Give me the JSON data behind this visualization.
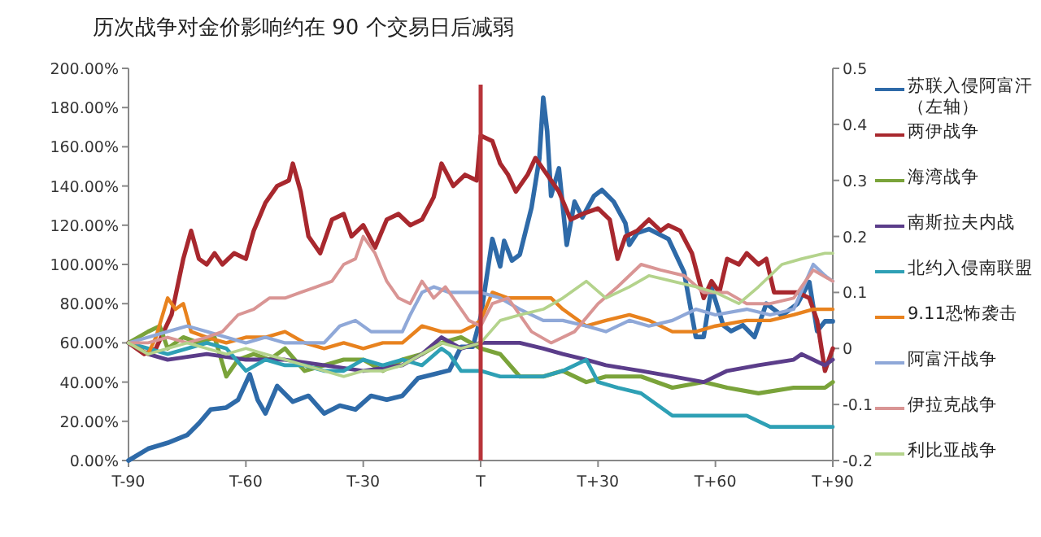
{
  "chart_data": {
    "type": "line",
    "title": "历次战争对金价影响约在 90 个交易日后减弱",
    "legend": "right",
    "categories": [
      "T-90",
      null,
      null,
      null,
      null,
      null,
      null,
      null,
      null,
      null,
      null,
      null,
      null,
      null,
      null,
      null,
      null,
      null,
      null,
      null,
      null,
      null,
      null,
      null,
      null,
      null,
      null,
      null,
      null,
      null,
      "T-60",
      null,
      null,
      null,
      null,
      null,
      null,
      null,
      null,
      null,
      null,
      null,
      null,
      null,
      null,
      null,
      null,
      null,
      null,
      null,
      null,
      null,
      null,
      null,
      null,
      null,
      null,
      null,
      null,
      null,
      "T-30",
      null,
      null,
      null,
      null,
      null,
      null,
      null,
      null,
      null,
      null,
      null,
      null,
      null,
      null,
      null,
      null,
      null,
      null,
      null,
      null,
      null,
      null,
      null,
      null,
      null,
      null,
      null,
      null,
      null,
      "T",
      null,
      null,
      null,
      null,
      null,
      null,
      null,
      null,
      null,
      null,
      null,
      null,
      null,
      null,
      null,
      null,
      null,
      null,
      null,
      null,
      null,
      null,
      null,
      null,
      null,
      null,
      null,
      null,
      null,
      "T+30",
      null,
      null,
      null,
      null,
      null,
      null,
      null,
      null,
      null,
      null,
      null,
      null,
      null,
      null,
      null,
      null,
      null,
      null,
      null,
      null,
      null,
      null,
      null,
      null,
      null,
      null,
      null,
      null,
      null,
      "T+60",
      null,
      null,
      null,
      null,
      null,
      null,
      null,
      null,
      null,
      null,
      null,
      null,
      null,
      null,
      null,
      null,
      null,
      null,
      null,
      null,
      null,
      null,
      null,
      null,
      null,
      null,
      null,
      null,
      null,
      "T+90"
    ],
    "ylim": [
      0,
      200
    ],
    "yticks": [
      {
        "value": 0,
        "label": "0.00%"
      },
      {
        "value": 20,
        "label": "20.00%"
      },
      {
        "value": 40,
        "label": "40.00%"
      },
      {
        "value": 60,
        "label": "60.00%"
      },
      {
        "value": 80,
        "label": "80.00%"
      },
      {
        "value": 100,
        "label": "100.00%"
      },
      {
        "value": 120,
        "label": "120.00%"
      },
      {
        "value": 140,
        "label": "140.00%"
      },
      {
        "value": 160,
        "label": "160.00%"
      },
      {
        "value": 180,
        "label": "180.00%"
      },
      {
        "value": 200,
        "label": "200.00%"
      }
    ],
    "y2lim": [
      -0.2,
      0.5
    ],
    "y2ticks": [
      -0.2,
      -0.1,
      0,
      0.1,
      0.2,
      0.3,
      0.4,
      0.5
    ],
    "ref_lines": [
      {
        "axis": "x",
        "value": "T",
        "color": "#b8343a"
      }
    ],
    "series": [
      {
        "name": "苏联入侵阿富汗（左轴）",
        "color": "#2e6aa8",
        "values": [
          0,
          null,
          null,
          null,
          null,
          6,
          null,
          null,
          null,
          null,
          9,
          null,
          null,
          null,
          null,
          13,
          null,
          null,
          19,
          null,
          null,
          26,
          null,
          null,
          null,
          27,
          null,
          null,
          31,
          null,
          null,
          44,
          null,
          31,
          null,
          24,
          null,
          null,
          38,
          null,
          null,
          null,
          30,
          null,
          null,
          null,
          33,
          null,
          null,
          null,
          24,
          null,
          null,
          null,
          28,
          null,
          null,
          null,
          26,
          null,
          null,
          null,
          33,
          null,
          null,
          null,
          31,
          null,
          null,
          null,
          33,
          null,
          null,
          null,
          42,
          null,
          null,
          null,
          44,
          null,
          null,
          null,
          46,
          null,
          null,
          58,
          null,
          null,
          58,
          null,
          73,
          null,
          null,
          113,
          null,
          99,
          112,
          null,
          102,
          null,
          105,
          null,
          null,
          129,
          null,
          154,
          185,
          168,
          135,
          null,
          149,
          null,
          110,
          null,
          132,
          null,
          124,
          null,
          null,
          135,
          null,
          138,
          null,
          null,
          132,
          null,
          null,
          121,
          110,
          null,
          116,
          null,
          null,
          118,
          null,
          null,
          null,
          null,
          113,
          null,
          null,
          null,
          96,
          null,
          null,
          63,
          null,
          63,
          null,
          88,
          null,
          null,
          69,
          null,
          66,
          null,
          null,
          69,
          null,
          null,
          63,
          null,
          null,
          80,
          null,
          null,
          null,
          74,
          null,
          null,
          null,
          80,
          null,
          null,
          91,
          null,
          66,
          null,
          71,
          null,
          71
        ]
      },
      {
        "name": "两伊战争",
        "color": "#a8282e",
        "axis": "y2",
        "values": [
          0.01,
          null,
          null,
          null,
          -0.01,
          null,
          null,
          0,
          null,
          null,
          null,
          0.06,
          null,
          null,
          0.16,
          null,
          0.21,
          null,
          0.16,
          null,
          0.15,
          null,
          0.17,
          null,
          0.15,
          null,
          null,
          0.17,
          null,
          null,
          0.16,
          null,
          0.21,
          null,
          null,
          0.26,
          null,
          null,
          0.29,
          null,
          null,
          0.3,
          0.33,
          null,
          0.28,
          null,
          0.2,
          null,
          null,
          0.17,
          null,
          null,
          0.23,
          null,
          null,
          0.24,
          null,
          0.2,
          null,
          null,
          0.22,
          null,
          null,
          0.18,
          null,
          null,
          0.23,
          null,
          null,
          0.24,
          null,
          null,
          0.22,
          null,
          null,
          0.23,
          null,
          null,
          0.27,
          null,
          0.33,
          null,
          null,
          0.29,
          null,
          null,
          0.31,
          null,
          null,
          0.3,
          0.38,
          null,
          null,
          0.37,
          null,
          0.33,
          null,
          0.31,
          null,
          0.28,
          null,
          null,
          0.31,
          null,
          0.34,
          null,
          null,
          0.31,
          null,
          null,
          0.28,
          null,
          null,
          0.23,
          null,
          null,
          0.24,
          null,
          null,
          null,
          0.25,
          null,
          null,
          0.23,
          null,
          0.16,
          null,
          0.2,
          null,
          null,
          0.21,
          null,
          null,
          0.23,
          null,
          null,
          0.21,
          null,
          0.22,
          null,
          null,
          0.21,
          null,
          null,
          0.17,
          null,
          null,
          0.09,
          null,
          0.12,
          null,
          0.1,
          null,
          0.16,
          null,
          null,
          0.15,
          null,
          0.17,
          null,
          null,
          0.15,
          null,
          0.16,
          null,
          0.1,
          null,
          null,
          0.1,
          null,
          null,
          0.1,
          null,
          null,
          0.09,
          null,
          0.05,
          null,
          -0.04,
          null,
          0
        ]
      },
      {
        "name": "海湾战争",
        "color": "#7aa33a",
        "axis": "y2",
        "values": [
          0.01,
          null,
          null,
          null,
          null,
          0.03,
          null,
          null,
          0.04,
          null,
          0,
          null,
          null,
          null,
          0.02,
          null,
          null,
          null,
          0.01,
          null,
          null,
          null,
          0.02,
          null,
          null,
          -0.05,
          null,
          null,
          -0.02,
          null,
          null,
          null,
          -0.01,
          null,
          null,
          null,
          -0.02,
          null,
          null,
          null,
          0,
          null,
          null,
          null,
          null,
          -0.04,
          null,
          null,
          null,
          null,
          -0.03,
          null,
          null,
          null,
          null,
          -0.02,
          null,
          null,
          null,
          null,
          -0.02,
          null,
          null,
          null,
          null,
          -0.04,
          null,
          null,
          null,
          null,
          -0.02,
          null,
          null,
          null,
          null,
          -0.01,
          null,
          null,
          null,
          null,
          0.01,
          null,
          null,
          null,
          null,
          0.02,
          null,
          null,
          null,
          null,
          0,
          null,
          null,
          null,
          null,
          -0.01,
          null,
          null,
          null,
          null,
          -0.05,
          null,
          null,
          null,
          null,
          null,
          -0.05,
          null,
          null,
          null,
          null,
          -0.04,
          null,
          null,
          null,
          null,
          null,
          -0.06,
          null,
          null,
          null,
          null,
          -0.05,
          null,
          null,
          null,
          null,
          null,
          null,
          null,
          null,
          -0.05,
          null,
          null,
          null,
          null,
          null,
          null,
          null,
          -0.07,
          null,
          null,
          null,
          null,
          null,
          null,
          null,
          -0.06,
          null,
          null,
          null,
          null,
          null,
          -0.07,
          null,
          null,
          null,
          null,
          null,
          null,
          null,
          -0.08,
          null,
          null,
          null,
          null,
          null,
          null,
          null,
          null,
          -0.07,
          null,
          null,
          null,
          null,
          null,
          null,
          null,
          -0.07,
          null,
          -0.06
        ]
      },
      {
        "name": "南斯拉夫内战",
        "color": "#5b3d8a",
        "axis": "y2",
        "values": [
          0.01,
          null,
          null,
          null,
          null,
          -0.01,
          null,
          null,
          null,
          null,
          -0.02,
          null,
          null,
          null,
          null,
          null,
          null,
          null,
          null,
          null,
          -0.01,
          null,
          null,
          null,
          null,
          null,
          null,
          null,
          null,
          null,
          -0.02,
          null,
          null,
          null,
          null,
          null,
          null,
          null,
          null,
          null,
          -0.02,
          null,
          null,
          null,
          null,
          null,
          null,
          null,
          null,
          null,
          -0.03,
          null,
          null,
          null,
          null,
          null,
          null,
          null,
          null,
          null,
          -0.04,
          null,
          null,
          null,
          null,
          null,
          null,
          null,
          null,
          null,
          -0.03,
          null,
          null,
          null,
          null,
          -0.01,
          null,
          null,
          null,
          null,
          0.02,
          null,
          null,
          null,
          null,
          0,
          null,
          null,
          null,
          null,
          0.01,
          null,
          null,
          null,
          null,
          0.01,
          null,
          null,
          null,
          null,
          0.01,
          null,
          null,
          null,
          null,
          null,
          0,
          null,
          null,
          null,
          null,
          -0.01,
          null,
          null,
          null,
          null,
          null,
          -0.02,
          null,
          null,
          null,
          null,
          -0.03,
          null,
          null,
          null,
          null,
          null,
          null,
          null,
          null,
          -0.04,
          null,
          null,
          null,
          null,
          null,
          null,
          null,
          -0.05,
          null,
          null,
          null,
          null,
          null,
          null,
          null,
          -0.06,
          null,
          null,
          null,
          null,
          null,
          -0.04,
          null,
          null,
          null,
          null,
          null,
          null,
          null,
          -0.03,
          null,
          null,
          null,
          null,
          null,
          null,
          null,
          null,
          -0.02,
          null,
          -0.01,
          null,
          null,
          null,
          null,
          null,
          -0.03,
          null,
          -0.02
        ]
      },
      {
        "name": "北约入侵南联盟",
        "color": "#2ea0b5",
        "axis": "y2",
        "values": [
          0.01,
          null,
          null,
          null,
          null,
          0,
          null,
          null,
          null,
          null,
          -0.01,
          null,
          null,
          null,
          null,
          null,
          null,
          null,
          null,
          null,
          0.01,
          null,
          null,
          null,
          null,
          0,
          null,
          null,
          null,
          null,
          -0.04,
          null,
          null,
          null,
          null,
          -0.02,
          null,
          null,
          null,
          null,
          -0.03,
          null,
          null,
          null,
          null,
          -0.03,
          null,
          null,
          null,
          null,
          -0.04,
          null,
          null,
          null,
          null,
          -0.04,
          null,
          null,
          null,
          null,
          -0.02,
          null,
          null,
          null,
          null,
          -0.03,
          null,
          null,
          null,
          null,
          -0.02,
          null,
          null,
          null,
          null,
          -0.03,
          null,
          null,
          null,
          null,
          0,
          null,
          -0.01,
          null,
          null,
          -0.04,
          null,
          null,
          null,
          null,
          -0.04,
          null,
          null,
          null,
          null,
          -0.05,
          null,
          null,
          null,
          null,
          -0.05,
          null,
          null,
          null,
          null,
          null,
          -0.05,
          null,
          null,
          null,
          null,
          -0.04,
          null,
          null,
          null,
          null,
          null,
          -0.02,
          null,
          null,
          -0.06,
          null,
          null,
          null,
          null,
          -0.07,
          null,
          null,
          null,
          null,
          null,
          -0.08,
          null,
          null,
          null,
          null,
          null,
          null,
          null,
          -0.12,
          null,
          null,
          null,
          null,
          null,
          -0.12,
          null,
          null,
          null,
          null,
          -0.12,
          null,
          null,
          null,
          null,
          null,
          null,
          null,
          -0.12,
          null,
          null,
          null,
          null,
          null,
          -0.14,
          null,
          null,
          null,
          null,
          null,
          -0.14,
          null,
          null,
          null,
          null,
          -0.14,
          null,
          null,
          null,
          null,
          -0.14
        ]
      },
      {
        "name": "9.11恐怖袭击",
        "color": "#e8821e",
        "axis": "y2",
        "values": [
          0.01,
          null,
          null,
          null,
          null,
          -0.01,
          null,
          0.02,
          null,
          null,
          0.09,
          null,
          0.07,
          null,
          0.08,
          null,
          0.03,
          null,
          null,
          null,
          0.02,
          null,
          null,
          null,
          null,
          0.01,
          null,
          null,
          null,
          null,
          0.02,
          null,
          null,
          null,
          null,
          0.02,
          null,
          null,
          null,
          null,
          0.03,
          null,
          null,
          null,
          null,
          0.01,
          null,
          null,
          null,
          null,
          0,
          null,
          null,
          null,
          null,
          0.01,
          null,
          null,
          null,
          null,
          0,
          null,
          null,
          null,
          null,
          0.01,
          null,
          null,
          null,
          null,
          0.01,
          null,
          null,
          null,
          null,
          0.04,
          null,
          null,
          null,
          null,
          0.03,
          null,
          null,
          null,
          null,
          0.03,
          null,
          null,
          0.04,
          null,
          0.05,
          null,
          null,
          0.1,
          null,
          null,
          null,
          0.09,
          null,
          null,
          null,
          null,
          null,
          0.09,
          null,
          null,
          null,
          null,
          0.09,
          null,
          null,
          0.07,
          null,
          null,
          null,
          null,
          null,
          0.04,
          null,
          null,
          null,
          null,
          0.05,
          null,
          null,
          null,
          null,
          null,
          0.06,
          null,
          null,
          null,
          null,
          0.05,
          null,
          null,
          null,
          null,
          null,
          0.03,
          null,
          null,
          null,
          null,
          null,
          0.03,
          null,
          null,
          null,
          null,
          0.04,
          null,
          null,
          null,
          null,
          null,
          null,
          null,
          0.05,
          null,
          null,
          null,
          null,
          null,
          0.05,
          null,
          null,
          null,
          null,
          null,
          0.06,
          null,
          null,
          null,
          null,
          0.07,
          null,
          null,
          null,
          null,
          0.07
        ]
      },
      {
        "name": "阿富汗战争",
        "color": "#8fa8d8",
        "axis": "y2",
        "values": [
          0.01,
          null,
          null,
          null,
          null,
          0.02,
          null,
          null,
          null,
          null,
          0.03,
          null,
          null,
          null,
          null,
          0.04,
          null,
          null,
          null,
          null,
          0.03,
          null,
          null,
          null,
          null,
          0.02,
          null,
          null,
          null,
          null,
          0.01,
          null,
          null,
          null,
          null,
          0.02,
          null,
          null,
          null,
          null,
          0.01,
          null,
          null,
          null,
          null,
          0.01,
          null,
          null,
          null,
          null,
          0.01,
          null,
          null,
          null,
          0.04,
          null,
          null,
          null,
          0.05,
          null,
          null,
          null,
          0.03,
          null,
          null,
          null,
          0.03,
          null,
          null,
          null,
          0.03,
          null,
          0.06,
          null,
          null,
          0.1,
          null,
          null,
          0.11,
          null,
          null,
          null,
          0.1,
          null,
          null,
          null,
          0.1,
          null,
          null,
          null,
          0.1,
          null,
          null,
          null,
          null,
          0.09,
          null,
          null,
          null,
          null,
          0.07,
          null,
          null,
          null,
          null,
          null,
          0.05,
          null,
          null,
          null,
          null,
          0.05,
          null,
          null,
          null,
          null,
          null,
          0.04,
          null,
          null,
          null,
          null,
          0.03,
          null,
          null,
          null,
          null,
          null,
          0.05,
          null,
          null,
          null,
          null,
          0.04,
          null,
          null,
          null,
          null,
          null,
          0.05,
          null,
          null,
          null,
          null,
          null,
          0.07,
          null,
          null,
          null,
          null,
          0.06,
          null,
          null,
          null,
          null,
          null,
          null,
          null,
          0.07,
          null,
          null,
          null,
          null,
          null,
          0.06,
          null,
          null,
          null,
          null,
          null,
          0.07,
          null,
          null,
          null,
          null,
          0.15,
          null,
          null,
          0.13,
          null,
          0.12
        ]
      },
      {
        "name": "伊拉克战争",
        "color": "#d99594",
        "axis": "y2",
        "values": [
          0.01,
          null,
          null,
          null,
          null,
          0.01,
          null,
          null,
          null,
          null,
          0.02,
          null,
          null,
          null,
          null,
          0.01,
          null,
          null,
          null,
          null,
          0.02,
          null,
          null,
          null,
          0.03,
          null,
          null,
          null,
          0.06,
          null,
          null,
          null,
          0.07,
          null,
          null,
          null,
          0.09,
          null,
          null,
          null,
          0.09,
          null,
          null,
          null,
          0.1,
          null,
          null,
          null,
          0.11,
          null,
          null,
          null,
          0.12,
          null,
          null,
          0.15,
          null,
          null,
          0.16,
          null,
          0.2,
          null,
          null,
          0.17,
          null,
          null,
          0.12,
          null,
          null,
          0.09,
          null,
          null,
          0.08,
          null,
          null,
          0.12,
          null,
          null,
          0.09,
          null,
          null,
          0.11,
          null,
          null,
          0.08,
          null,
          null,
          0.05,
          null,
          null,
          0.04,
          null,
          null,
          0.08,
          null,
          null,
          null,
          0.09,
          null,
          null,
          null,
          null,
          null,
          0.03,
          null,
          null,
          null,
          null,
          0.01,
          null,
          null,
          null,
          null,
          null,
          0.03,
          null,
          null,
          null,
          null,
          null,
          0.08,
          null,
          null,
          null,
          null,
          0.11,
          null,
          null,
          null,
          null,
          null,
          0.15,
          null,
          null,
          null,
          null,
          0.14,
          null,
          null,
          null,
          null,
          null,
          0.13,
          null,
          null,
          null,
          null,
          0.1,
          null,
          null,
          null,
          null,
          null,
          0.1,
          null,
          null,
          null,
          null,
          0.08,
          null,
          null,
          null,
          null,
          null,
          0.08,
          null,
          null,
          null,
          null,
          null,
          0.09,
          null,
          null,
          null,
          null,
          0.14,
          null,
          null,
          null,
          null,
          0.12
        ]
      },
      {
        "name": "利比亚战争",
        "color": "#b4d38c",
        "axis": "y2",
        "values": [
          0.01,
          null,
          null,
          null,
          null,
          -0.01,
          null,
          null,
          null,
          null,
          0,
          null,
          null,
          null,
          null,
          0.01,
          null,
          null,
          null,
          null,
          0,
          null,
          null,
          null,
          null,
          -0.01,
          null,
          null,
          null,
          null,
          0,
          null,
          null,
          null,
          null,
          -0.01,
          null,
          null,
          null,
          null,
          -0.02,
          null,
          null,
          null,
          null,
          -0.03,
          null,
          null,
          null,
          null,
          -0.04,
          null,
          null,
          null,
          null,
          -0.05,
          null,
          null,
          null,
          null,
          -0.04,
          null,
          null,
          null,
          null,
          -0.04,
          null,
          null,
          null,
          null,
          -0.03,
          null,
          null,
          null,
          null,
          -0.01,
          null,
          null,
          null,
          null,
          0.01,
          null,
          null,
          null,
          null,
          0,
          null,
          null,
          null,
          null,
          0.01,
          null,
          null,
          null,
          null,
          0.05,
          null,
          null,
          null,
          null,
          0.06,
          null,
          null,
          null,
          null,
          null,
          0.07,
          null,
          null,
          null,
          null,
          0.09,
          null,
          null,
          null,
          null,
          null,
          0.12,
          null,
          null,
          null,
          null,
          0.09,
          null,
          null,
          null,
          null,
          null,
          0.11,
          null,
          null,
          null,
          null,
          0.13,
          null,
          null,
          null,
          null,
          null,
          0.12,
          null,
          null,
          null,
          null,
          null,
          0.11,
          null,
          null,
          null,
          null,
          0.1,
          null,
          null,
          null,
          null,
          null,
          0.08,
          null,
          null,
          null,
          null,
          0.11,
          null,
          null,
          null,
          null,
          null,
          0.15,
          null,
          null,
          null,
          null,
          0.16,
          null,
          null,
          null,
          null,
          null,
          0.17,
          null,
          0.17
        ]
      }
    ]
  }
}
